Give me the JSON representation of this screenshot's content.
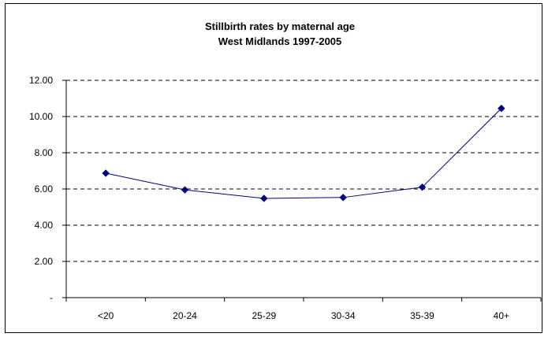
{
  "chart_data": {
    "type": "line",
    "title": "Stillbirth rates by maternal age",
    "subtitle": "West Midlands 1997-2005",
    "xlabel": "",
    "ylabel": "",
    "categories": [
      "<20",
      "20-24",
      "25-29",
      "30-34",
      "35-39",
      "40+"
    ],
    "series": [
      {
        "values": [
          6.87,
          5.95,
          5.48,
          5.53,
          6.1,
          10.45
        ],
        "color": "#000080",
        "marker": "diamond"
      }
    ],
    "ylim": [
      0,
      12
    ],
    "y_ticks": [
      0,
      2,
      4,
      6,
      8,
      10,
      12
    ],
    "y_tick_labels": [
      "-",
      "2.00",
      "4.00",
      "6.00",
      "8.00",
      "10.00",
      "12.00"
    ],
    "grid": "horizontal dashed",
    "legend": "none"
  }
}
